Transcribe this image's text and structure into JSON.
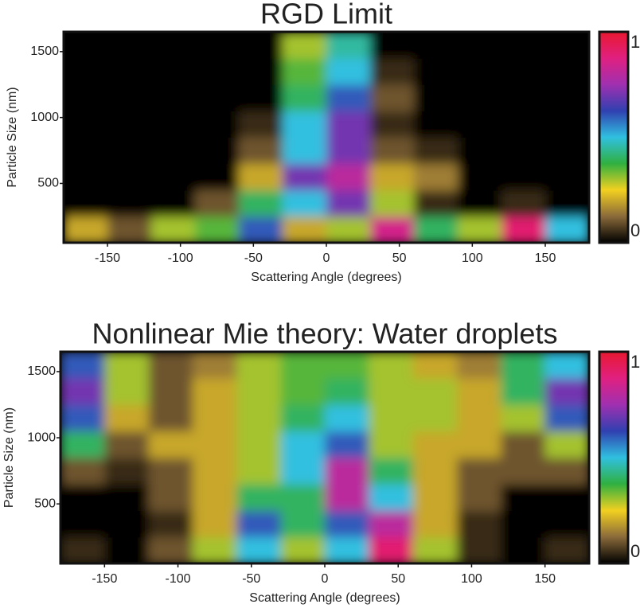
{
  "chart_data": [
    {
      "type": "heatmap",
      "title": "RGD Limit",
      "xlabel": "Scattering Angle (degrees)",
      "ylabel": "Particle Size (nm)",
      "x": [
        -165,
        -135,
        -105,
        -75,
        -45,
        -15,
        15,
        45,
        75,
        105,
        135,
        165
      ],
      "y": [
        150,
        350,
        550,
        750,
        950,
        1150,
        1350,
        1550
      ],
      "z": [
        [
          0.2,
          0.1,
          0.3,
          0.35,
          0.6,
          0.2,
          0.3,
          0.85,
          0.4,
          0.3,
          0.9,
          0.5
        ],
        [
          0,
          0,
          0,
          0.1,
          0.4,
          0.5,
          0.7,
          0.3,
          0.05,
          0,
          0.05,
          0
        ],
        [
          0,
          0,
          0,
          0,
          0.2,
          0.7,
          0.8,
          0.2,
          0.15,
          0,
          0,
          0
        ],
        [
          0,
          0,
          0,
          0,
          0.1,
          0.5,
          0.7,
          0.1,
          0.05,
          0,
          0,
          0
        ],
        [
          0,
          0,
          0,
          0,
          0.05,
          0.5,
          0.7,
          0.05,
          0,
          0,
          0,
          0
        ],
        [
          0,
          0,
          0,
          0,
          0,
          0.4,
          0.6,
          0.1,
          0,
          0,
          0,
          0
        ],
        [
          0,
          0,
          0,
          0,
          0,
          0.35,
          0.5,
          0.05,
          0,
          0,
          0,
          0
        ],
        [
          0,
          0,
          0,
          0,
          0,
          0.3,
          0.45,
          0,
          0,
          0,
          0,
          0
        ]
      ],
      "xlim": [
        -180,
        180
      ],
      "ylim": [
        50,
        1650
      ],
      "xticks": [
        -150,
        -100,
        -50,
        0,
        50,
        100,
        150
      ],
      "yticks": [
        500,
        1000,
        1500
      ],
      "clim": [
        0,
        1
      ],
      "cticks": [
        0,
        1
      ],
      "colormap": [
        "#000000",
        "#8a6a3a",
        "#f2d020",
        "#30b040",
        "#30c0e0",
        "#3040b0",
        "#a030b0",
        "#e02080",
        "#e81830"
      ]
    },
    {
      "type": "heatmap",
      "title": "Nonlinear Mie theory: Water droplets",
      "xlabel": "Scattering Angle (degrees)",
      "ylabel": "Particle Size (nm)",
      "x": [
        -165,
        -135,
        -105,
        -75,
        -45,
        -15,
        15,
        45,
        75,
        105,
        135,
        165
      ],
      "y": [
        150,
        350,
        550,
        750,
        950,
        1150,
        1350,
        1550
      ],
      "z": [
        [
          0.05,
          0,
          0.1,
          0.3,
          0.5,
          0.3,
          0.5,
          0.9,
          0.3,
          0.05,
          0,
          0.05
        ],
        [
          0,
          0,
          0.05,
          0.2,
          0.6,
          0.4,
          0.6,
          0.8,
          0.2,
          0.05,
          0,
          0
        ],
        [
          0,
          0,
          0.1,
          0.2,
          0.4,
          0.4,
          0.8,
          0.5,
          0.2,
          0.1,
          0,
          0
        ],
        [
          0.1,
          0.05,
          0.1,
          0.2,
          0.3,
          0.5,
          0.8,
          0.4,
          0.2,
          0.1,
          0.1,
          0.1
        ],
        [
          0.4,
          0.1,
          0.2,
          0.2,
          0.3,
          0.5,
          0.6,
          0.3,
          0.2,
          0.2,
          0.1,
          0.3
        ],
        [
          0.6,
          0.2,
          0.1,
          0.2,
          0.3,
          0.4,
          0.5,
          0.3,
          0.3,
          0.2,
          0.3,
          0.6
        ],
        [
          0.7,
          0.3,
          0.1,
          0.2,
          0.3,
          0.35,
          0.4,
          0.3,
          0.3,
          0.2,
          0.4,
          0.7
        ],
        [
          0.6,
          0.3,
          0.1,
          0.15,
          0.3,
          0.35,
          0.35,
          0.3,
          0.2,
          0.15,
          0.4,
          0.5
        ]
      ],
      "xlim": [
        -180,
        180
      ],
      "ylim": [
        50,
        1650
      ],
      "xticks": [
        -150,
        -100,
        -50,
        0,
        50,
        100,
        150
      ],
      "yticks": [
        500,
        1000,
        1500
      ],
      "clim": [
        0,
        1
      ],
      "cticks": [
        0,
        1
      ],
      "colormap": [
        "#000000",
        "#8a6a3a",
        "#f2d020",
        "#30b040",
        "#30c0e0",
        "#3040b0",
        "#a030b0",
        "#e02080",
        "#e81830"
      ]
    }
  ]
}
